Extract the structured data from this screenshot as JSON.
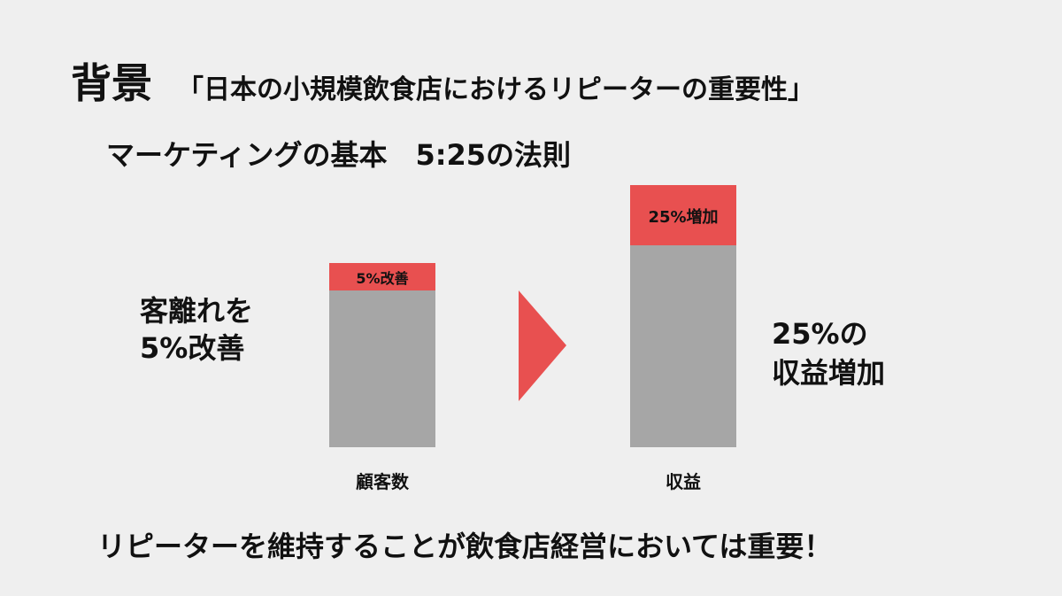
{
  "header": {
    "title": "背景",
    "subtitle": "「日本の小規模飲食店におけるリピーターの重要性」"
  },
  "heading": "マーケティングの基本　5:25の法則",
  "left_text": [
    "客離れを",
    "5%改善"
  ],
  "bars": [
    {
      "label": "顧客数",
      "highlight": "5%改善"
    },
    {
      "label": "収益",
      "highlight": "25%増加"
    }
  ],
  "right_text": [
    "25%の",
    "収益増加"
  ],
  "footer": "リピーターを維持することが飲食店経営においては重要！"
}
